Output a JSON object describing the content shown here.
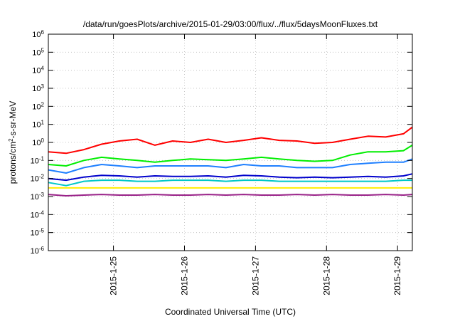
{
  "chart_data": {
    "type": "line",
    "title": "/data/run/goesPlots/archive/2015-01-29/03:00/flux/../flux/5daysMoonFluxes.txt",
    "xlabel": "Coordinated Universal Time (UTC)",
    "ylabel": {
      "base": "protons/cm",
      "sup": "2",
      "rest": "-s-sr-MeV"
    },
    "y_scale": "log",
    "ylim_exponents": [
      -6,
      6
    ],
    "y_tick_exponents": [
      -6,
      -5,
      -4,
      -3,
      -2,
      -1,
      0,
      1,
      2,
      3,
      4,
      5,
      6
    ],
    "y_tick_base": "10",
    "xlim": [
      "2015-01-24T02:00",
      "2015-01-29T05:00"
    ],
    "x_ticks": [
      {
        "label": "2015-1-25",
        "x": "2015-01-25T00:00"
      },
      {
        "label": "2015-1-26",
        "x": "2015-01-26T00:00"
      },
      {
        "label": "2015-1-27",
        "x": "2015-01-27T00:00"
      },
      {
        "label": "2015-1-28",
        "x": "2015-01-28T00:00"
      },
      {
        "label": "2015-1-29",
        "x": "2015-01-29T00:00"
      }
    ],
    "grid": true,
    "legend": "none",
    "sample_times": [
      "2015-01-24T02:00",
      "2015-01-24T08:00",
      "2015-01-24T14:00",
      "2015-01-24T20:00",
      "2015-01-25T02:00",
      "2015-01-25T08:00",
      "2015-01-25T14:00",
      "2015-01-25T20:00",
      "2015-01-26T02:00",
      "2015-01-26T08:00",
      "2015-01-26T14:00",
      "2015-01-26T20:00",
      "2015-01-27T02:00",
      "2015-01-27T08:00",
      "2015-01-27T14:00",
      "2015-01-27T20:00",
      "2015-01-28T02:00",
      "2015-01-28T08:00",
      "2015-01-28T14:00",
      "2015-01-28T20:00",
      "2015-01-29T02:00",
      "2015-01-29T05:00"
    ],
    "series": [
      {
        "color": "#ff0000",
        "values": [
          0.3,
          0.25,
          0.4,
          0.8,
          1.2,
          1.5,
          0.7,
          1.2,
          1.0,
          1.5,
          1.0,
          1.3,
          1.8,
          1.3,
          1.2,
          0.9,
          1.0,
          1.5,
          2.2,
          2.0,
          3.0,
          7.0
        ]
      },
      {
        "color": "#00ee00",
        "values": [
          0.06,
          0.05,
          0.1,
          0.15,
          0.12,
          0.1,
          0.08,
          0.1,
          0.12,
          0.11,
          0.1,
          0.12,
          0.15,
          0.12,
          0.1,
          0.09,
          0.1,
          0.2,
          0.3,
          0.3,
          0.35,
          0.7
        ]
      },
      {
        "color": "#2080ff",
        "values": [
          0.03,
          0.02,
          0.04,
          0.06,
          0.05,
          0.04,
          0.05,
          0.05,
          0.05,
          0.05,
          0.04,
          0.06,
          0.05,
          0.05,
          0.04,
          0.04,
          0.04,
          0.06,
          0.07,
          0.08,
          0.08,
          0.12
        ]
      },
      {
        "color": "#0000cc",
        "values": [
          0.01,
          0.008,
          0.012,
          0.015,
          0.014,
          0.012,
          0.014,
          0.013,
          0.013,
          0.014,
          0.012,
          0.015,
          0.014,
          0.012,
          0.011,
          0.012,
          0.011,
          0.012,
          0.013,
          0.012,
          0.014,
          0.018
        ]
      },
      {
        "color": "#00c8c8",
        "values": [
          0.006,
          0.004,
          0.007,
          0.008,
          0.008,
          0.007,
          0.007,
          0.008,
          0.008,
          0.008,
          0.007,
          0.008,
          0.008,
          0.007,
          0.007,
          0.007,
          0.007,
          0.007,
          0.007,
          0.007,
          0.008,
          0.008
        ]
      },
      {
        "color": "#ffee00",
        "values": [
          0.003,
          0.003,
          0.003,
          0.003,
          0.003,
          0.003,
          0.003,
          0.003,
          0.003,
          0.003,
          0.003,
          0.003,
          0.003,
          0.003,
          0.003,
          0.003,
          0.003,
          0.003,
          0.003,
          0.003,
          0.003,
          0.003
        ]
      },
      {
        "color": "#992288",
        "values": [
          0.0013,
          0.0011,
          0.0012,
          0.0013,
          0.0012,
          0.0012,
          0.0013,
          0.0012,
          0.0012,
          0.0013,
          0.0012,
          0.0013,
          0.0012,
          0.0012,
          0.0013,
          0.0012,
          0.0013,
          0.0012,
          0.0012,
          0.0013,
          0.0012,
          0.0013
        ]
      }
    ]
  }
}
